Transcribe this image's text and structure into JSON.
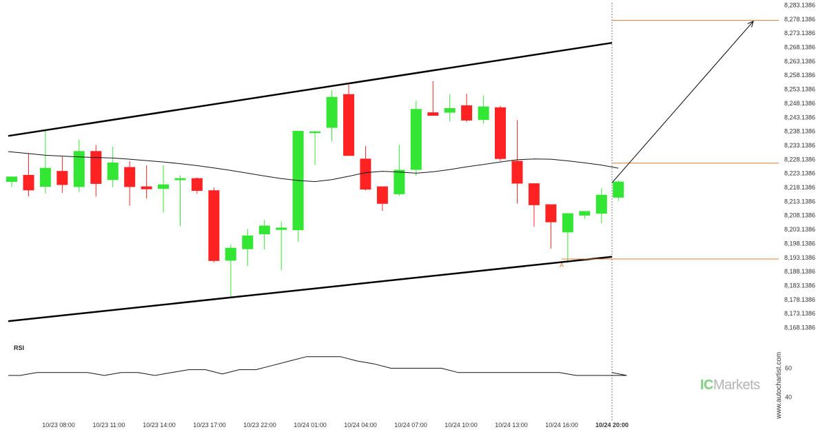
{
  "chart_data": {
    "type": "candlestick",
    "y_range": [
      8165.1386,
      8285.1386
    ],
    "y_ticks": [
      "8,283.1386",
      "8,278.1386",
      "8,273.1386",
      "8,268.1386",
      "8,263.1386",
      "8,258.1386",
      "8,253.1386",
      "8,248.1386",
      "8,243.1386",
      "8,238.1386",
      "8,233.1386",
      "8,228.1386",
      "8,223.1386",
      "8,218.1386",
      "8,213.1386",
      "8,208.1386",
      "8,203.1386",
      "8,198.1386",
      "8,193.1386",
      "8,188.1386",
      "8,183.1386",
      "8,178.1386",
      "8,173.1386",
      "8,168.1386"
    ],
    "x_ticks": [
      "10/23 08:00",
      "10/23 11:00",
      "10/23 14:00",
      "10/23 17:00",
      "10/23 22:00",
      "10/24 01:00",
      "10/24 04:00",
      "10/24 07:00",
      "10/24 10:00",
      "10/24 13:00",
      "10/24 16:00",
      "10/24 20:00"
    ],
    "last_tick": "10/24 20:00",
    "candles": [
      {
        "o": 8220.1,
        "h": 8221.9,
        "l": 8218.3,
        "c": 8222.0
      },
      {
        "o": 8222.6,
        "h": 8230.4,
        "l": 8214.9,
        "c": 8217.1
      },
      {
        "o": 8218.4,
        "h": 8238.3,
        "l": 8216.0,
        "c": 8225.1
      },
      {
        "o": 8224.0,
        "h": 8229.1,
        "l": 8216.2,
        "c": 8219.0
      },
      {
        "o": 8218.3,
        "h": 8235.2,
        "l": 8216.6,
        "c": 8231.1
      },
      {
        "o": 8231.1,
        "h": 8233.2,
        "l": 8214.9,
        "c": 8219.4
      },
      {
        "o": 8220.8,
        "h": 8232.7,
        "l": 8218.2,
        "c": 8227.0
      },
      {
        "o": 8225.4,
        "h": 8227.5,
        "l": 8211.6,
        "c": 8218.3
      },
      {
        "o": 8218.5,
        "h": 8226.0,
        "l": 8214.1,
        "c": 8217.5
      },
      {
        "o": 8217.6,
        "h": 8226.0,
        "l": 8209.2,
        "c": 8219.2
      },
      {
        "o": 8220.7,
        "h": 8222.3,
        "l": 8204.3,
        "c": 8221.4
      },
      {
        "o": 8221.4,
        "h": 8221.7,
        "l": 8215.9,
        "c": 8216.9
      },
      {
        "o": 8217.1,
        "h": 8218.1,
        "l": 8191.4,
        "c": 8191.9
      },
      {
        "o": 8192.0,
        "h": 8197.7,
        "l": 8178.9,
        "c": 8196.6
      },
      {
        "o": 8196.1,
        "h": 8203.3,
        "l": 8190.1,
        "c": 8201.0
      },
      {
        "o": 8201.4,
        "h": 8206.6,
        "l": 8196.0,
        "c": 8204.5
      },
      {
        "o": 8203.0,
        "h": 8205.9,
        "l": 8188.5,
        "c": 8203.8
      },
      {
        "o": 8202.9,
        "h": 8238.3,
        "l": 8198.8,
        "c": 8238.3
      },
      {
        "o": 8237.5,
        "h": 8238.4,
        "l": 8226.2,
        "c": 8238.1
      },
      {
        "o": 8239.4,
        "h": 8252.8,
        "l": 8234.6,
        "c": 8250.4
      },
      {
        "o": 8251.4,
        "h": 8255.5,
        "l": 8230.4,
        "c": 8229.4
      },
      {
        "o": 8228.4,
        "h": 8232.9,
        "l": 8217.1,
        "c": 8217.4
      },
      {
        "o": 8218.5,
        "h": 8218.4,
        "l": 8209.7,
        "c": 8212.3
      },
      {
        "o": 8215.7,
        "h": 8233.3,
        "l": 8215.1,
        "c": 8224.4
      },
      {
        "o": 8224.4,
        "h": 8249.0,
        "l": 8222.3,
        "c": 8246.1
      },
      {
        "o": 8244.9,
        "h": 8256.0,
        "l": 8243.7,
        "c": 8243.7
      },
      {
        "o": 8244.8,
        "h": 8251.3,
        "l": 8241.6,
        "c": 8246.4
      },
      {
        "o": 8247.4,
        "h": 8251.5,
        "l": 8241.5,
        "c": 8242.0
      },
      {
        "o": 8242.2,
        "h": 8250.9,
        "l": 8240.9,
        "c": 8247.0
      },
      {
        "o": 8246.7,
        "h": 8247.2,
        "l": 8227.6,
        "c": 8228.3
      },
      {
        "o": 8227.6,
        "h": 8242.1,
        "l": 8212.4,
        "c": 8219.5
      },
      {
        "o": 8219.6,
        "h": 8219.2,
        "l": 8204.1,
        "c": 8211.8
      },
      {
        "o": 8212.1,
        "h": 8212.0,
        "l": 8196.3,
        "c": 8205.7
      },
      {
        "o": 8202.1,
        "h": 8209.1,
        "l": 8191.4,
        "c": 8208.9
      },
      {
        "o": 8208.1,
        "h": 8209.6,
        "l": 8207.0,
        "c": 8209.7
      },
      {
        "o": 8208.8,
        "h": 8217.8,
        "l": 8205.3,
        "c": 8215.5
      },
      {
        "o": 8214.5,
        "h": 8220.7,
        "l": 8213.3,
        "c": 8220.2
      }
    ],
    "moving_average": [
      8230.9,
      8230.2,
      8229.6,
      8229.3,
      8229.0,
      8228.8,
      8228.6,
      8228.2,
      8227.7,
      8227.2,
      8226.6,
      8225.9,
      8225.1,
      8224.2,
      8223.2,
      8222.2,
      8221.3,
      8220.6,
      8220.2,
      8220.9,
      8222.1,
      8223.4,
      8223.9,
      8223.6,
      8223.2,
      8223.7,
      8224.5,
      8225.5,
      8226.3,
      8227.2,
      8228.0,
      8228.3,
      8228.2,
      8227.6,
      8226.9,
      8226.1,
      8225.0
    ],
    "channel": {
      "upper": {
        "start": 8236.5,
        "end": 8269.7
      },
      "lower": {
        "start": 8170.4,
        "end": 8193.4
      }
    },
    "levels": [
      8277.7,
      8226.8,
      8192.6
    ],
    "arrow": {
      "from": 8219.8,
      "to": 8277.4
    },
    "point_label": "A",
    "rsi": {
      "label": "RSI",
      "ticks": [
        "60",
        "40"
      ],
      "values": [
        55,
        55,
        57,
        57,
        57,
        57,
        55,
        57,
        57,
        55,
        57,
        59,
        59,
        56,
        59,
        59,
        62,
        65,
        68,
        68,
        68,
        65,
        63,
        60,
        60,
        60,
        60,
        57,
        57,
        57,
        57,
        57,
        57,
        57,
        55,
        55,
        55,
        55,
        57
      ]
    }
  },
  "brand": {
    "ic": "IC",
    "rest": "Markets"
  },
  "credit": "www.autochartist.com",
  "colors": {
    "bull": "#33e633",
    "bear": "#ff2222",
    "level": "#e07a32",
    "channel": "#000000",
    "text": "#333333"
  }
}
